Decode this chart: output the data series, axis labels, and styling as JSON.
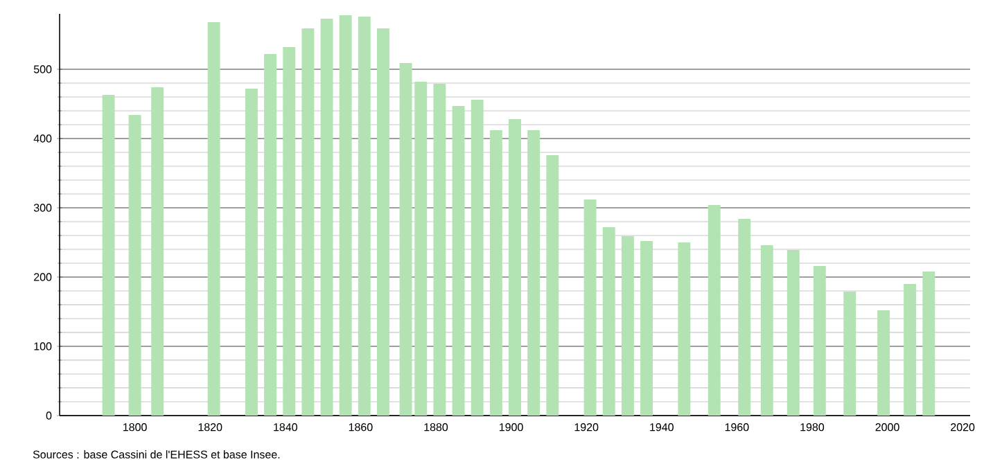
{
  "chart_data": {
    "type": "bar",
    "color": "#b3e3b3",
    "x": [
      1793,
      1800,
      1806,
      1821,
      1831,
      1836,
      1841,
      1846,
      1851,
      1856,
      1861,
      1866,
      1872,
      1876,
      1881,
      1886,
      1891,
      1896,
      1901,
      1906,
      1911,
      1921,
      1926,
      1931,
      1936,
      1946,
      1954,
      1962,
      1968,
      1975,
      1982,
      1990,
      1999,
      2006,
      2011
    ],
    "values": [
      463,
      434,
      474,
      568,
      472,
      522,
      532,
      559,
      573,
      578,
      576,
      559,
      509,
      482,
      479,
      447,
      456,
      412,
      428,
      412,
      376,
      312,
      272,
      259,
      252,
      250,
      304,
      284,
      246,
      239,
      216,
      179,
      152,
      190,
      208
    ],
    "xlim": [
      1780,
      2022
    ],
    "ylim": [
      0,
      580
    ],
    "xticks": [
      1800,
      1820,
      1840,
      1860,
      1880,
      1900,
      1920,
      1940,
      1960,
      1980,
      2000,
      2020
    ],
    "yticks": [
      0,
      100,
      200,
      300,
      400,
      500
    ],
    "grid": "y",
    "annotations": [
      "Sources : base Cassini de l'EHESS et base Insee."
    ]
  }
}
